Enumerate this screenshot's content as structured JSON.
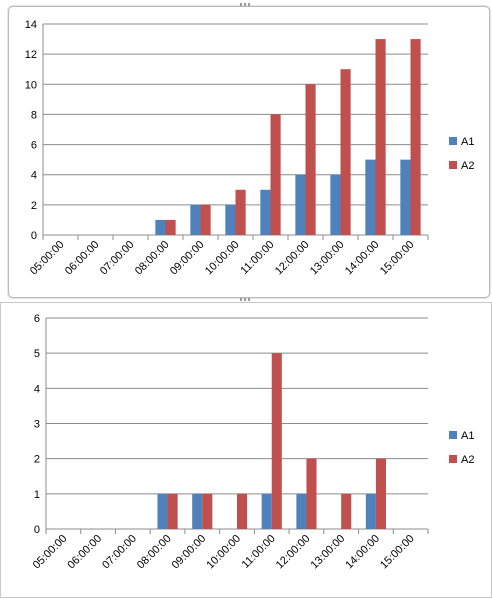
{
  "chart_data": [
    {
      "type": "bar",
      "categories": [
        "05:00:00",
        "06:00:00",
        "07:00:00",
        "08:00:00",
        "09:00:00",
        "10:00:00",
        "11:00:00",
        "12:00:00",
        "13:00:00",
        "14:00:00",
        "15:00:00"
      ],
      "series": [
        {
          "name": "A1",
          "values": [
            0,
            0,
            0,
            1,
            2,
            2,
            3,
            4,
            4,
            5,
            5
          ],
          "color": "#4f81bd"
        },
        {
          "name": "A2",
          "values": [
            0,
            0,
            0,
            1,
            2,
            3,
            8,
            10,
            11,
            13,
            13
          ],
          "color": "#c0504d"
        }
      ],
      "yticks": [
        "0",
        "2",
        "4",
        "6",
        "8",
        "10",
        "12",
        "14"
      ],
      "ylim": [
        0,
        14
      ],
      "grid": true,
      "legend": "right"
    },
    {
      "type": "bar",
      "categories": [
        "05:00:00",
        "06:00:00",
        "07:00:00",
        "08:00:00",
        "09:00:00",
        "10:00:00",
        "11:00:00",
        "12:00:00",
        "13:00:00",
        "14:00:00",
        "15:00:00"
      ],
      "series": [
        {
          "name": "A1",
          "values": [
            0,
            0,
            0,
            1,
            1,
            0,
            1,
            1,
            0,
            1,
            0
          ],
          "color": "#4f81bd"
        },
        {
          "name": "A2",
          "values": [
            0,
            0,
            0,
            1,
            1,
            1,
            5,
            2,
            1,
            2,
            0
          ],
          "color": "#c0504d"
        }
      ],
      "yticks": [
        "0",
        "1",
        "2",
        "3",
        "4",
        "5",
        "6"
      ],
      "ylim": [
        0,
        6
      ],
      "grid": true,
      "legend": "right"
    }
  ]
}
